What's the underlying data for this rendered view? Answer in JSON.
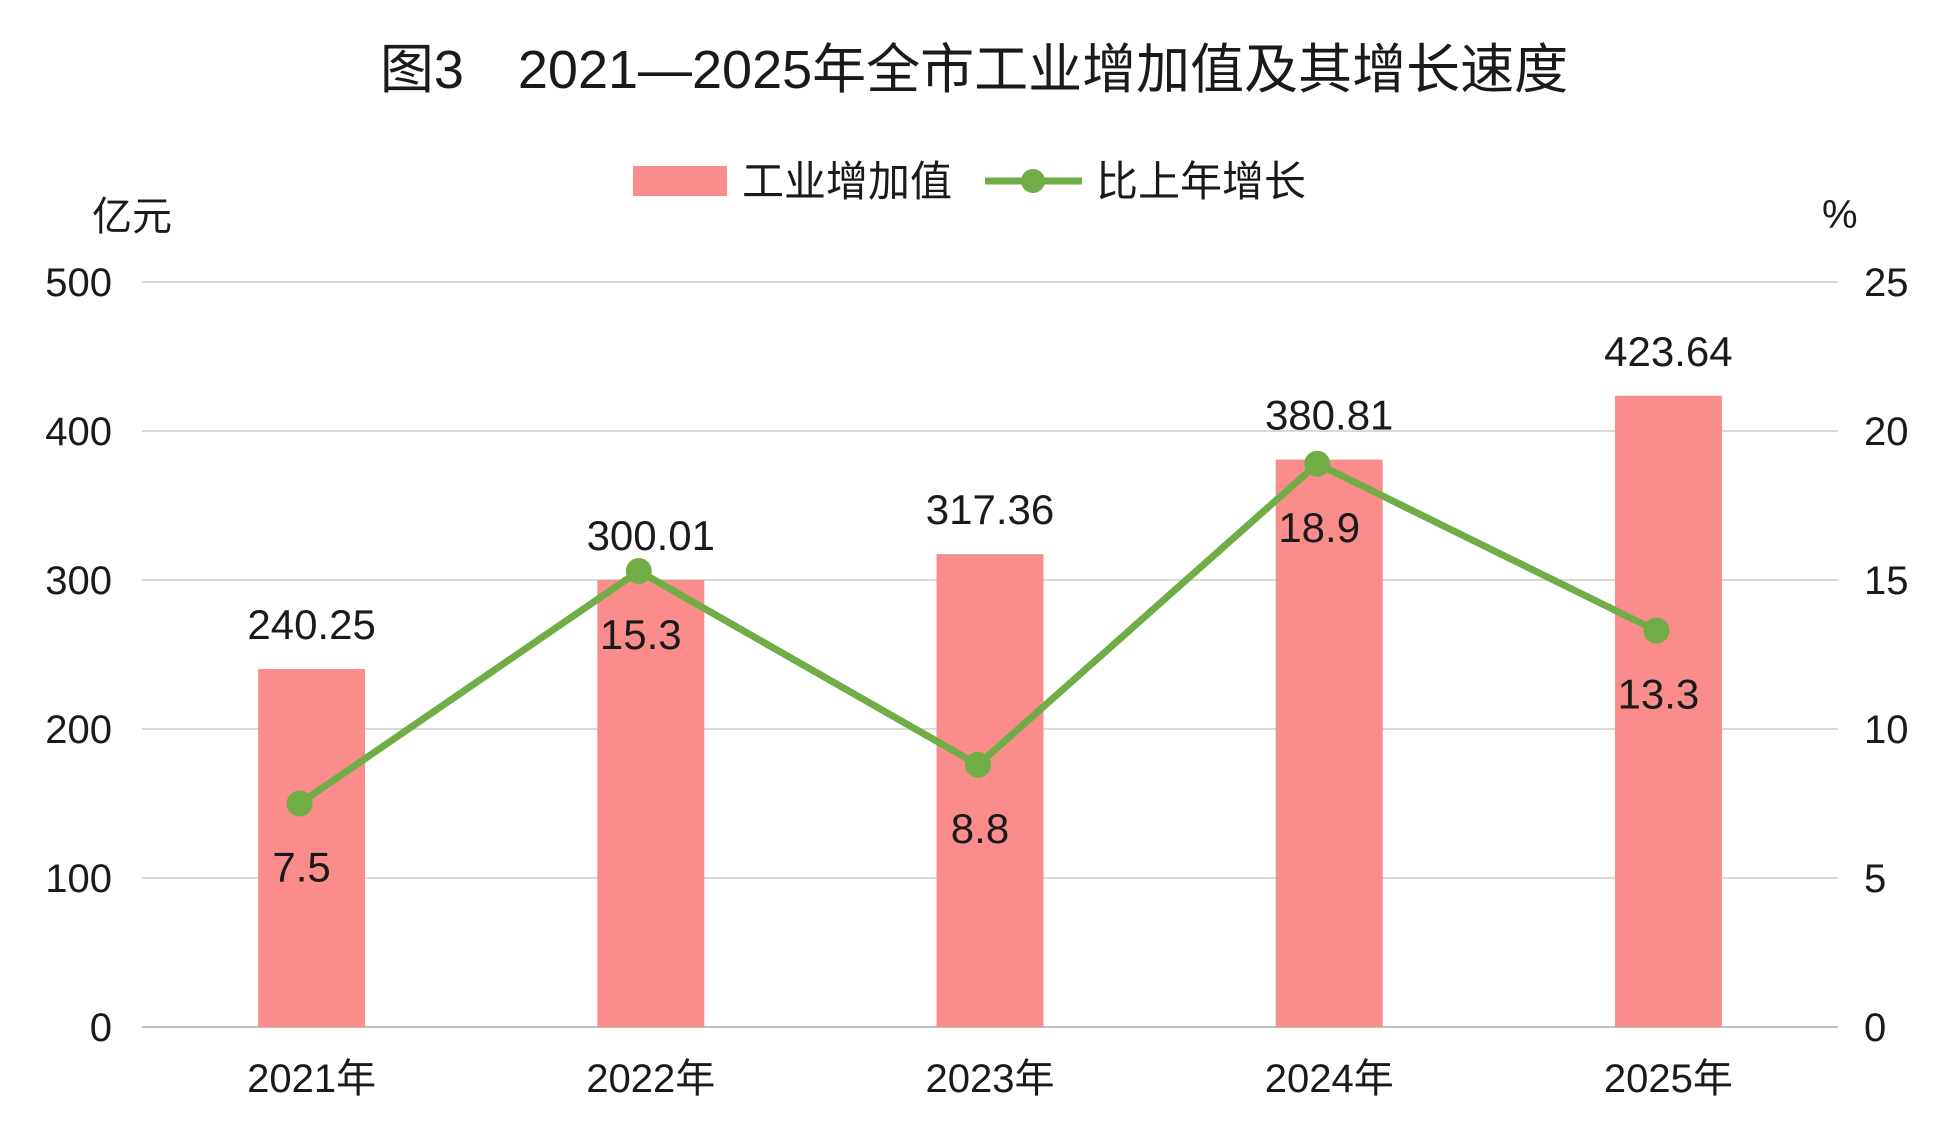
{
  "colors": {
    "bar": "#fa8c8c",
    "line": "#70ad47",
    "grid": "#d9d9d9"
  },
  "chart_data": {
    "type": "bar",
    "title": "图3　2021—2025年全市工业增加值及其增长速度",
    "categories": [
      "2021年",
      "2022年",
      "2023年",
      "2024年",
      "2025年"
    ],
    "series": [
      {
        "name": "工业增加值",
        "type": "bar",
        "axis": "left",
        "values": [
          240.25,
          300.01,
          317.36,
          380.81,
          423.64
        ],
        "labels": [
          "240.25",
          "300.01",
          "317.36",
          "380.81",
          "423.64"
        ]
      },
      {
        "name": "比上年增长",
        "type": "line",
        "axis": "right",
        "values": [
          7.5,
          15.3,
          8.8,
          18.9,
          13.3
        ],
        "labels": [
          "7.5",
          "15.3",
          "8.8",
          "18.9",
          "13.3"
        ]
      }
    ],
    "y_left": {
      "unit": "亿元",
      "range": [
        0,
        500
      ],
      "ticks": [
        0,
        100,
        200,
        300,
        400,
        500
      ]
    },
    "y_right": {
      "unit": "%",
      "range": [
        0,
        25
      ],
      "ticks": [
        0,
        5,
        10,
        15,
        20,
        25
      ]
    },
    "grid": true,
    "legend": "top-center"
  }
}
